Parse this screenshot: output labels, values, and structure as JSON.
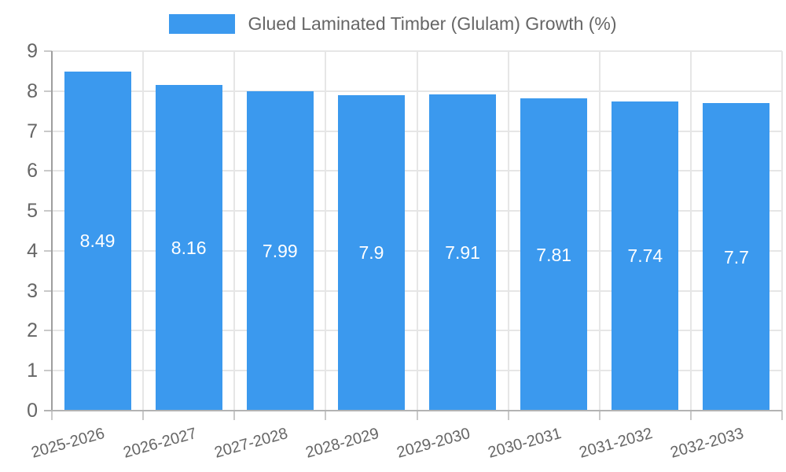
{
  "chart_data": {
    "type": "bar",
    "title": "",
    "legend": {
      "label": "Glued Laminated Timber (Glulam) Growth (%)",
      "position": "top"
    },
    "categories": [
      "2025-2026",
      "2026-2027",
      "2027-2028",
      "2028-2029",
      "2029-2030",
      "2030-2031",
      "2031-2032",
      "2032-2033"
    ],
    "values": [
      8.49,
      8.16,
      7.99,
      7.9,
      7.91,
      7.81,
      7.74,
      7.7
    ],
    "value_labels": [
      "8.49",
      "8.16",
      "7.99",
      "7.9",
      "7.91",
      "7.81",
      "7.74",
      "7.7"
    ],
    "xlabel": "",
    "ylabel": "",
    "ylim": [
      0,
      9
    ],
    "yticks": [
      "0",
      "1",
      "2",
      "3",
      "4",
      "5",
      "6",
      "7",
      "8",
      "9"
    ],
    "grid": true,
    "x_label_rotation_deg": -15.5,
    "colors": {
      "bar": "#3b99ee",
      "bar_label": "#ffffff",
      "tick_text": "#666666",
      "grid": "#e6e6e6",
      "axis_y": "#9e9e9e",
      "axis_x": "#b3b3b3",
      "tick": "#c9c9c9"
    }
  }
}
